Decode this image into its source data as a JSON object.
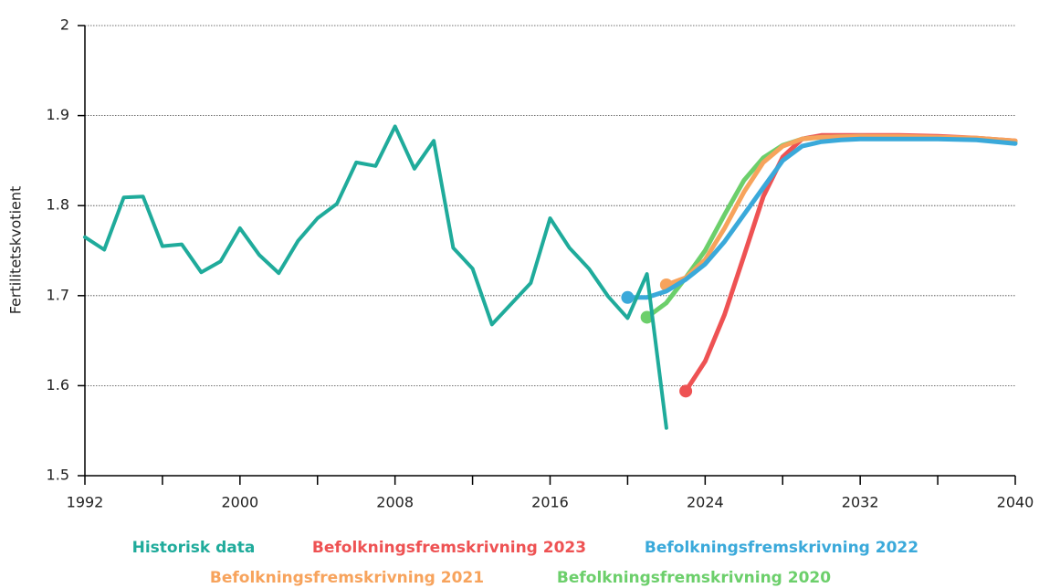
{
  "chart_data": {
    "type": "line",
    "y_label": "Fertilitetskvotient",
    "xlim": [
      1992,
      2040
    ],
    "xticks": [
      1992,
      2000,
      2008,
      2016,
      2024,
      2032,
      2040
    ],
    "x_minor_ticks": [
      1996,
      2004,
      2012,
      2020,
      2028,
      2036
    ],
    "ylim": [
      1.5,
      2
    ],
    "yticks": [
      1.5,
      1.6,
      1.7,
      1.8,
      1.9,
      2
    ],
    "grid": true,
    "series": [
      {
        "name": "Historisk data",
        "color": "#1fab9b",
        "start_marker": false,
        "x": [
          1992,
          1993,
          1994,
          1995,
          1996,
          1997,
          1998,
          1999,
          2000,
          2001,
          2002,
          2003,
          2004,
          2005,
          2006,
          2007,
          2008,
          2009,
          2010,
          2011,
          2012,
          2013,
          2014,
          2015,
          2016,
          2017,
          2018,
          2019,
          2020,
          2021,
          2022
        ],
        "values": [
          1.765,
          1.751,
          1.809,
          1.81,
          1.755,
          1.757,
          1.726,
          1.738,
          1.775,
          1.745,
          1.725,
          1.761,
          1.786,
          1.802,
          1.848,
          1.844,
          1.888,
          1.841,
          1.872,
          1.753,
          1.73,
          1.668,
          1.691,
          1.714,
          1.786,
          1.753,
          1.73,
          1.699,
          1.675,
          1.724,
          1.553
        ]
      },
      {
        "name": "Befolkningsfremskrivning 2023",
        "color": "#ee5253",
        "start_marker": true,
        "x": [
          2023,
          2024,
          2025,
          2026,
          2027,
          2028,
          2029,
          2030,
          2032,
          2034,
          2036,
          2038,
          2040
        ],
        "values": [
          1.594,
          1.627,
          1.679,
          1.744,
          1.81,
          1.854,
          1.874,
          1.878,
          1.878,
          1.878,
          1.877,
          1.875,
          1.872
        ]
      },
      {
        "name": "Befolkningsfremskrivning 2022",
        "color": "#3aa9da",
        "start_marker": true,
        "x": [
          2020,
          2021,
          2022,
          2023,
          2024,
          2025,
          2026,
          2027,
          2028,
          2029,
          2030,
          2031,
          2032,
          2034,
          2036,
          2038,
          2040
        ],
        "values": [
          1.698,
          1.698,
          1.705,
          1.718,
          1.735,
          1.76,
          1.79,
          1.82,
          1.85,
          1.866,
          1.871,
          1.873,
          1.874,
          1.874,
          1.874,
          1.873,
          1.869
        ]
      },
      {
        "name": "Befolkningsfremskrivning 2021",
        "color": "#f7a35c",
        "start_marker": true,
        "x": [
          2022,
          2023,
          2024,
          2025,
          2026,
          2027,
          2028,
          2029,
          2030,
          2032,
          2034,
          2036,
          2038,
          2040
        ],
        "values": [
          1.712,
          1.72,
          1.74,
          1.775,
          1.815,
          1.848,
          1.866,
          1.874,
          1.876,
          1.877,
          1.877,
          1.876,
          1.875,
          1.872
        ]
      },
      {
        "name": "Befolkningsfremskrivning 2020",
        "color": "#6ccf6b",
        "start_marker": true,
        "x": [
          2021,
          2022,
          2023,
          2024,
          2025,
          2026,
          2027,
          2028,
          2029,
          2030,
          2032,
          2034,
          2036,
          2038,
          2040
        ],
        "values": [
          1.676,
          1.692,
          1.72,
          1.75,
          1.79,
          1.828,
          1.853,
          1.867,
          1.874,
          1.876,
          1.877,
          1.876,
          1.875,
          1.874,
          1.871
        ]
      }
    ]
  }
}
